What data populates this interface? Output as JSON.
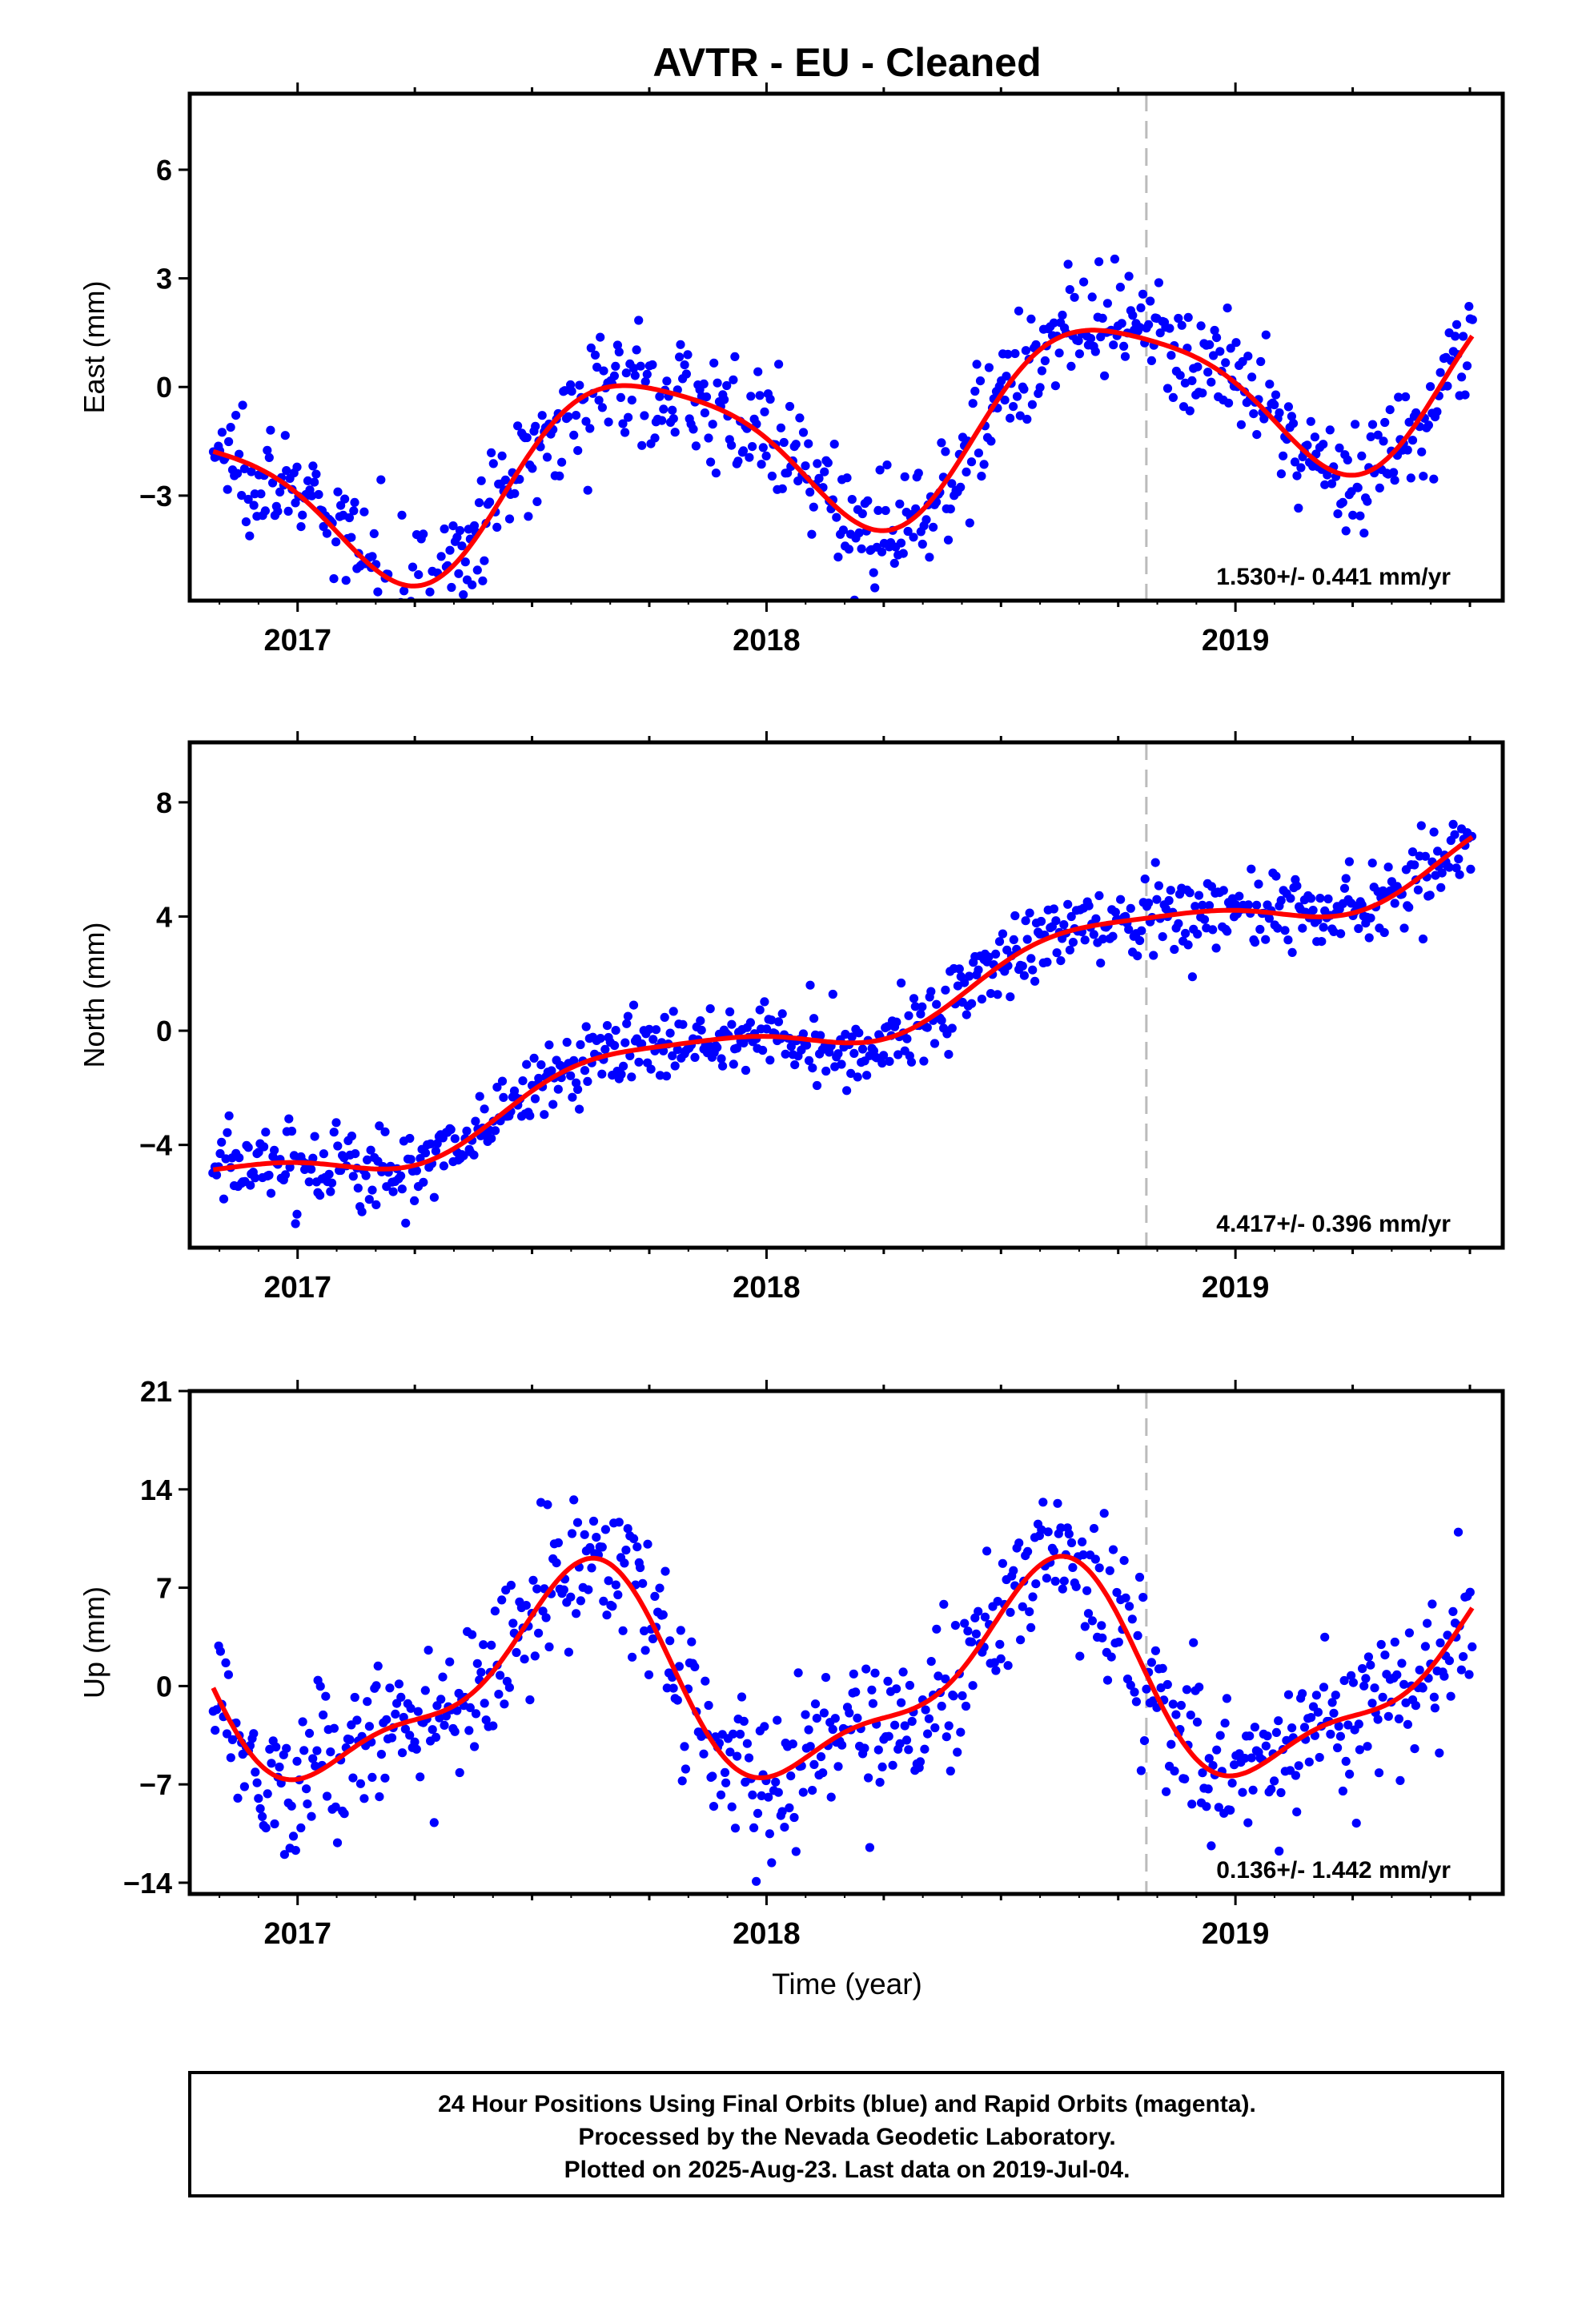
{
  "title": "AVTR  - EU - Cleaned",
  "xlabel": "Time (year)",
  "footer": {
    "line1": "24 Hour Positions Using Final Orbits (blue) and Rapid Orbits (magenta).",
    "line2": "Processed by the Nevada Geodetic Laboratory.",
    "line3": "Plotted on 2025-Aug-23. Last data on 2019-Jul-04."
  },
  "colors": {
    "points": "#0000ff",
    "fit": "#ff0000",
    "marker": "#bbbbbb",
    "frame": "#000000"
  },
  "chart_data": [
    {
      "type": "scatter",
      "name": "east",
      "ylabel": "East (mm)",
      "xlim": [
        2016.77,
        2019.57
      ],
      "ylim": [
        -5.9,
        8.1
      ],
      "yticks": [
        -3,
        0,
        3,
        6
      ],
      "xticks": [
        2017,
        2018,
        2019
      ],
      "equipment_change": 2018.81,
      "rate": "1.530+/- 0.441 mm/yr",
      "series": [
        {
          "name": "Final Orbits",
          "x_start": 2016.82,
          "x_end": 2019.505,
          "n": 720,
          "trend": 1.53,
          "offset": -1.6,
          "sin1": -2.35,
          "cos1": -0.22,
          "sin2": 0.2,
          "cos2": 0.4,
          "noise": 1.05
        }
      ]
    },
    {
      "type": "scatter",
      "name": "north",
      "ylabel": "North (mm)",
      "xlim": [
        2016.77,
        2019.57
      ],
      "ylim": [
        -7.6,
        10.1
      ],
      "yticks": [
        -4,
        0,
        4,
        8
      ],
      "xticks": [
        2017,
        2018,
        2019
      ],
      "equipment_change": 2018.81,
      "rate": "4.417+/- 0.396 mm/yr",
      "series": [
        {
          "name": "Final Orbits",
          "x_start": 2016.82,
          "x_end": 2019.505,
          "n": 720,
          "trend": 4.417,
          "offset": -0.25,
          "sin1": -0.95,
          "cos1": -0.15,
          "sin2": 0.1,
          "cos2": 0.2,
          "noise": 0.95
        }
      ]
    },
    {
      "type": "scatter",
      "name": "up",
      "ylabel": "Up (mm)",
      "xlim": [
        2016.77,
        2019.57
      ],
      "ylim": [
        -14.8,
        21.0
      ],
      "yticks": [
        -14,
        -7,
        0,
        7,
        14,
        21
      ],
      "xticks": [
        2017,
        2018,
        2019
      ],
      "equipment_change": 2018.81,
      "rate": "0.136+/- 1.442 mm/yr",
      "series": [
        {
          "name": "Final Orbits",
          "x_start": 2016.82,
          "x_end": 2019.505,
          "n": 720,
          "trend": 0.136,
          "offset": 0.3,
          "sin1": -3.6,
          "cos1": -5.8,
          "sin2": 2.2,
          "cos2": -1.0,
          "noise": 3.6
        }
      ]
    }
  ]
}
